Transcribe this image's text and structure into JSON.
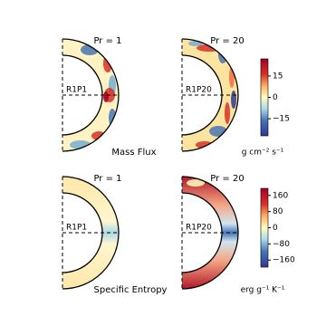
{
  "chart_data": [
    {
      "type": "meridional",
      "title": "Mass Flux",
      "unit": "g cm⁻² s⁻¹",
      "panels": [
        {
          "title": "Pr = 1",
          "label": "R1P1"
        },
        {
          "title": "Pr = 20",
          "label": "R1P20"
        }
      ],
      "clim": [
        -27,
        27
      ],
      "ticks": [
        15,
        0,
        {
          "value": -15,
          "label": "−15"
        }
      ]
    },
    {
      "type": "meridional",
      "title": "Specific Entropy",
      "unit": "erg g⁻¹ K⁻¹",
      "panels": [
        {
          "title": "Pr = 1",
          "label": "R1P1"
        },
        {
          "title": "Pr = 20",
          "label": "R1P20"
        }
      ],
      "clim": [
        -195,
        195
      ],
      "ticks": [
        160,
        80,
        0,
        {
          "value": -80,
          "label": "−80"
        },
        {
          "value": -160,
          "label": "−160"
        }
      ]
    }
  ]
}
